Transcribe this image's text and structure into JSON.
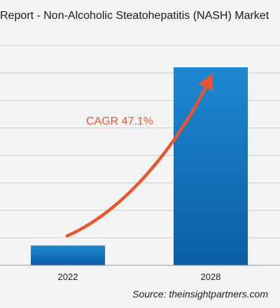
{
  "header": {
    "title": "Report - Non-Alcoholic Steatohepatitis (NASH) Market"
  },
  "annotation": {
    "cagr_label": "CAGR 47.1%",
    "color": "#e8552e"
  },
  "footer": {
    "source": "Source: theinsightpartners.com"
  },
  "colors": {
    "background": "#f3f3f3",
    "bar_top": "#1e88d2",
    "bar_bottom": "#0b5fa3",
    "grid": "#d0d0d0"
  },
  "chart_data": {
    "type": "bar",
    "categories": [
      "2022",
      "2028"
    ],
    "series": [
      {
        "values": [
          1.0,
          10.0
        ]
      }
    ],
    "title": "Report - Non-Alcoholic Steatohepatitis (NASH) Market",
    "xlabel": "",
    "ylabel": "",
    "ylim": [
      0,
      11.1
    ],
    "grid": true,
    "gridlines": 8,
    "show_y_tick_labels": false,
    "annotation": "CAGR 47.1%",
    "legend": "none"
  }
}
